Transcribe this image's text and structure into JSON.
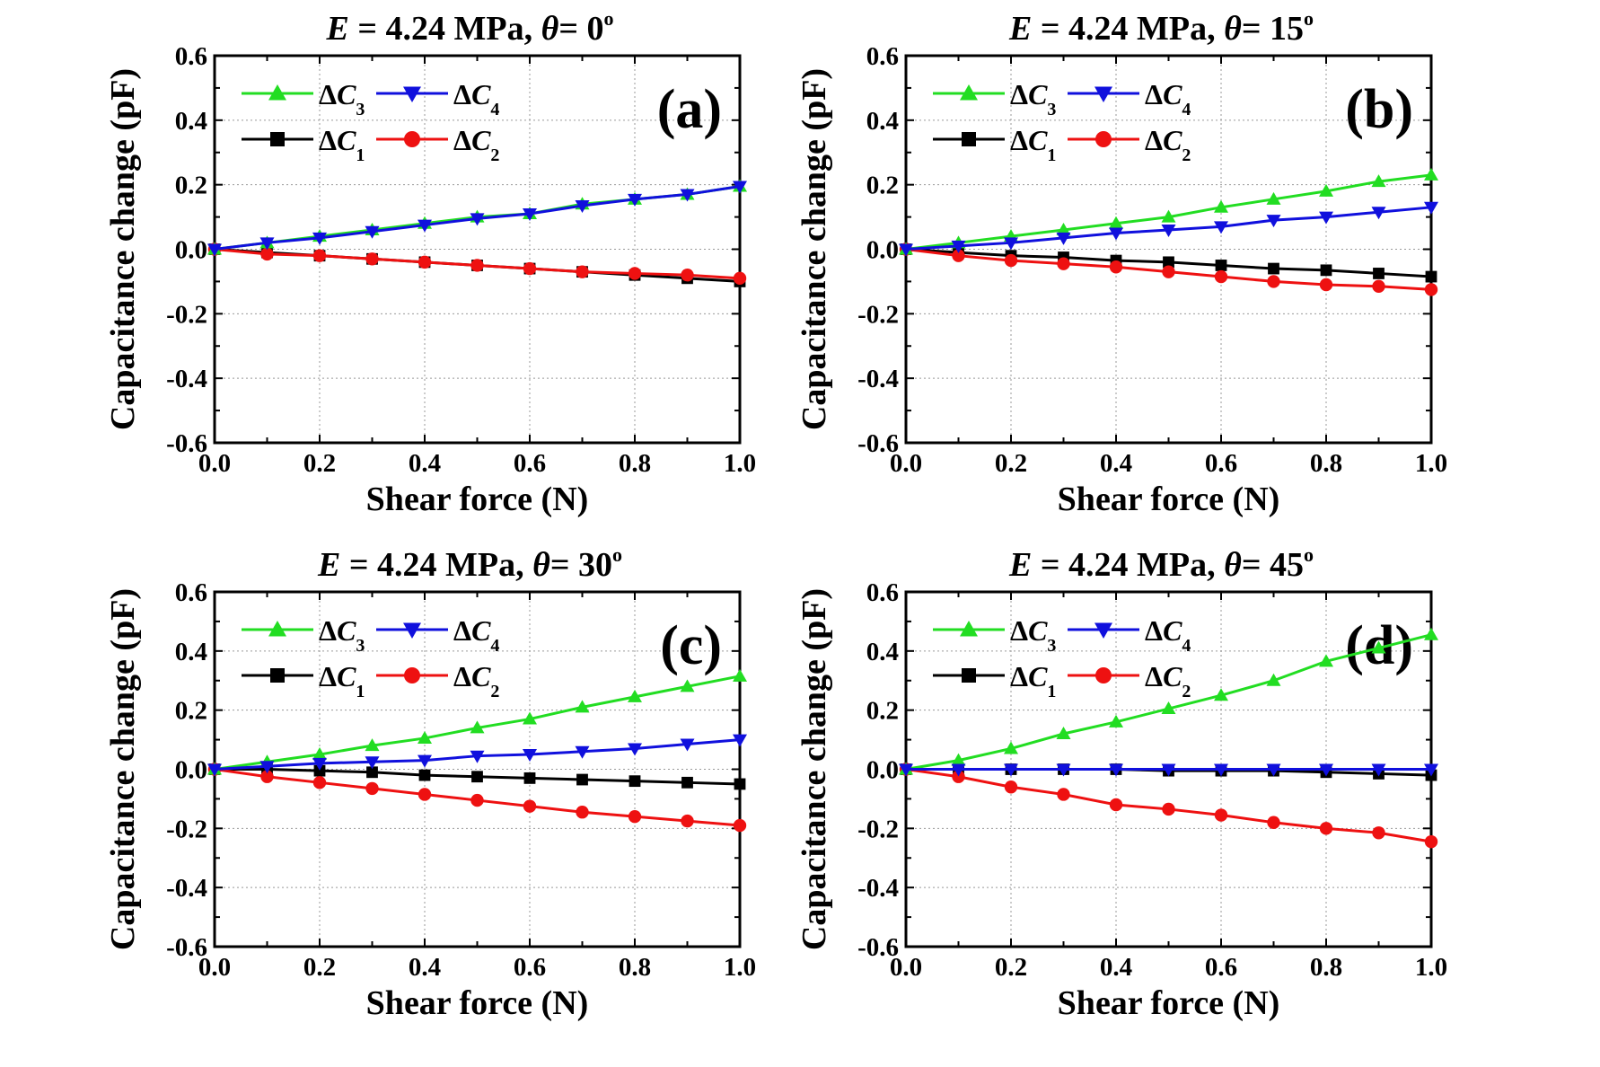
{
  "chart_data": [
    {
      "type": "line",
      "panel_label": "(a)",
      "title": {
        "E_symbol": "E",
        "E_value": " = 4.24 MPa, ",
        "theta_symbol": "θ",
        "theta_value": "= 0",
        "degree": "o"
      },
      "xlabel": "Shear force (N)",
      "ylabel": "Capacitance change (pF)",
      "xlim": [
        0.0,
        1.0
      ],
      "ylim": [
        -0.6,
        0.6
      ],
      "xticks": [
        "0.0",
        "0.2",
        "0.4",
        "0.6",
        "0.8",
        "1.0"
      ],
      "yticks": [
        "0.6",
        "0.4",
        "0.2",
        "0.0",
        "-0.2",
        "-0.4",
        "-0.6"
      ],
      "grid": true,
      "legend_position": "top-left",
      "x": [
        0,
        0.1,
        0.2,
        0.3,
        0.4,
        0.5,
        0.6,
        0.7,
        0.8,
        0.9,
        1.0
      ],
      "series": [
        {
          "name": "ΔC3",
          "base": "ΔC",
          "sub": "3",
          "color": "#22dd22",
          "marker": "triangle-up",
          "values": [
            0,
            0.02,
            0.04,
            0.06,
            0.08,
            0.1,
            0.11,
            0.14,
            0.155,
            0.17,
            0.195
          ]
        },
        {
          "name": "ΔC4",
          "base": "ΔC",
          "sub": "4",
          "color": "#1010dd",
          "marker": "triangle-down",
          "values": [
            0,
            0.02,
            0.035,
            0.055,
            0.075,
            0.095,
            0.11,
            0.135,
            0.155,
            0.17,
            0.195
          ]
        },
        {
          "name": "ΔC1",
          "base": "ΔC",
          "sub": "1",
          "color": "#000000",
          "marker": "square",
          "values": [
            0,
            -0.01,
            -0.02,
            -0.03,
            -0.04,
            -0.05,
            -0.06,
            -0.07,
            -0.08,
            -0.09,
            -0.1
          ]
        },
        {
          "name": "ΔC2",
          "base": "ΔC",
          "sub": "2",
          "color": "#ee1111",
          "marker": "circle",
          "values": [
            0,
            -0.015,
            -0.02,
            -0.03,
            -0.04,
            -0.05,
            -0.06,
            -0.07,
            -0.075,
            -0.08,
            -0.09
          ]
        }
      ]
    },
    {
      "type": "line",
      "panel_label": "(b)",
      "title": {
        "E_symbol": "E",
        "E_value": " = 4.24 MPa, ",
        "theta_symbol": "θ",
        "theta_value": "= 15",
        "degree": "o"
      },
      "xlabel": "Shear force (N)",
      "ylabel": "Capacitance change (pF)",
      "xlim": [
        0.0,
        1.0
      ],
      "ylim": [
        -0.6,
        0.6
      ],
      "xticks": [
        "0.0",
        "0.2",
        "0.4",
        "0.6",
        "0.8",
        "1.0"
      ],
      "yticks": [
        "0.6",
        "0.4",
        "0.2",
        "0.0",
        "-0.2",
        "-0.4",
        "-0.6"
      ],
      "grid": true,
      "legend_position": "top-left",
      "x": [
        0,
        0.1,
        0.2,
        0.3,
        0.4,
        0.5,
        0.6,
        0.7,
        0.8,
        0.9,
        1.0
      ],
      "series": [
        {
          "name": "ΔC3",
          "base": "ΔC",
          "sub": "3",
          "color": "#22dd22",
          "marker": "triangle-up",
          "values": [
            0,
            0.02,
            0.04,
            0.06,
            0.08,
            0.1,
            0.13,
            0.155,
            0.18,
            0.21,
            0.23
          ]
        },
        {
          "name": "ΔC4",
          "base": "ΔC",
          "sub": "4",
          "color": "#1010dd",
          "marker": "triangle-down",
          "values": [
            0,
            0.01,
            0.02,
            0.035,
            0.05,
            0.06,
            0.07,
            0.09,
            0.1,
            0.115,
            0.13
          ]
        },
        {
          "name": "ΔC1",
          "base": "ΔC",
          "sub": "1",
          "color": "#000000",
          "marker": "square",
          "values": [
            0,
            -0.01,
            -0.02,
            -0.025,
            -0.035,
            -0.04,
            -0.05,
            -0.06,
            -0.065,
            -0.075,
            -0.085
          ]
        },
        {
          "name": "ΔC2",
          "base": "ΔC",
          "sub": "2",
          "color": "#ee1111",
          "marker": "circle",
          "values": [
            0,
            -0.02,
            -0.035,
            -0.045,
            -0.055,
            -0.07,
            -0.085,
            -0.1,
            -0.11,
            -0.115,
            -0.125
          ]
        }
      ]
    },
    {
      "type": "line",
      "panel_label": "(c)",
      "title": {
        "E_symbol": "E",
        "E_value": " = 4.24 MPa, ",
        "theta_symbol": "θ",
        "theta_value": "= 30",
        "degree": "o"
      },
      "xlabel": "Shear force (N)",
      "ylabel": "Capacitance change (pF)",
      "xlim": [
        0.0,
        1.0
      ],
      "ylim": [
        -0.6,
        0.6
      ],
      "xticks": [
        "0.0",
        "0.2",
        "0.4",
        "0.6",
        "0.8",
        "1.0"
      ],
      "yticks": [
        "0.6",
        "0.4",
        "0.2",
        "0.0",
        "-0.2",
        "-0.4",
        "-0.6"
      ],
      "grid": true,
      "legend_position": "top-left",
      "x": [
        0,
        0.1,
        0.2,
        0.3,
        0.4,
        0.5,
        0.6,
        0.7,
        0.8,
        0.9,
        1.0
      ],
      "series": [
        {
          "name": "ΔC3",
          "base": "ΔC",
          "sub": "3",
          "color": "#22dd22",
          "marker": "triangle-up",
          "values": [
            0,
            0.025,
            0.05,
            0.08,
            0.105,
            0.14,
            0.17,
            0.21,
            0.245,
            0.28,
            0.315
          ]
        },
        {
          "name": "ΔC4",
          "base": "ΔC",
          "sub": "4",
          "color": "#1010dd",
          "marker": "triangle-down",
          "values": [
            0,
            0.01,
            0.02,
            0.025,
            0.03,
            0.045,
            0.05,
            0.06,
            0.07,
            0.085,
            0.1
          ]
        },
        {
          "name": "ΔC1",
          "base": "ΔC",
          "sub": "1",
          "color": "#000000",
          "marker": "square",
          "values": [
            0,
            0,
            -0.005,
            -0.01,
            -0.02,
            -0.025,
            -0.03,
            -0.035,
            -0.04,
            -0.045,
            -0.05
          ]
        },
        {
          "name": "ΔC2",
          "base": "ΔC",
          "sub": "2",
          "color": "#ee1111",
          "marker": "circle",
          "values": [
            0,
            -0.025,
            -0.045,
            -0.065,
            -0.085,
            -0.105,
            -0.125,
            -0.145,
            -0.16,
            -0.175,
            -0.19
          ]
        }
      ]
    },
    {
      "type": "line",
      "panel_label": "(d)",
      "title": {
        "E_symbol": "E",
        "E_value": " = 4.24 MPa, ",
        "theta_symbol": "θ",
        "theta_value": "= 45",
        "degree": "o"
      },
      "xlabel": "Shear force (N)",
      "ylabel": "Capacitance change (pF)",
      "xlim": [
        0.0,
        1.0
      ],
      "ylim": [
        -0.6,
        0.6
      ],
      "xticks": [
        "0.0",
        "0.2",
        "0.4",
        "0.6",
        "0.8",
        "1.0"
      ],
      "yticks": [
        "0.6",
        "0.4",
        "0.2",
        "0.0",
        "-0.2",
        "-0.4",
        "-0.6"
      ],
      "grid": true,
      "legend_position": "top-left",
      "x": [
        0,
        0.1,
        0.2,
        0.3,
        0.4,
        0.5,
        0.6,
        0.7,
        0.8,
        0.9,
        1.0
      ],
      "series": [
        {
          "name": "ΔC3",
          "base": "ΔC",
          "sub": "3",
          "color": "#22dd22",
          "marker": "triangle-up",
          "values": [
            0,
            0.03,
            0.07,
            0.12,
            0.16,
            0.205,
            0.25,
            0.3,
            0.365,
            0.41,
            0.455
          ]
        },
        {
          "name": "ΔC4",
          "base": "ΔC",
          "sub": "4",
          "color": "#1010dd",
          "marker": "triangle-down",
          "values": [
            0,
            0,
            0,
            0,
            0,
            0,
            0,
            0,
            0,
            0,
            0
          ]
        },
        {
          "name": "ΔC1",
          "base": "ΔC",
          "sub": "1",
          "color": "#000000",
          "marker": "square",
          "values": [
            0,
            0,
            0,
            0,
            0,
            -0.005,
            -0.005,
            -0.005,
            -0.01,
            -0.015,
            -0.02
          ]
        },
        {
          "name": "ΔC2",
          "base": "ΔC",
          "sub": "2",
          "color": "#ee1111",
          "marker": "circle",
          "values": [
            0,
            -0.025,
            -0.06,
            -0.085,
            -0.12,
            -0.135,
            -0.155,
            -0.18,
            -0.2,
            -0.215,
            -0.245
          ]
        }
      ]
    }
  ]
}
